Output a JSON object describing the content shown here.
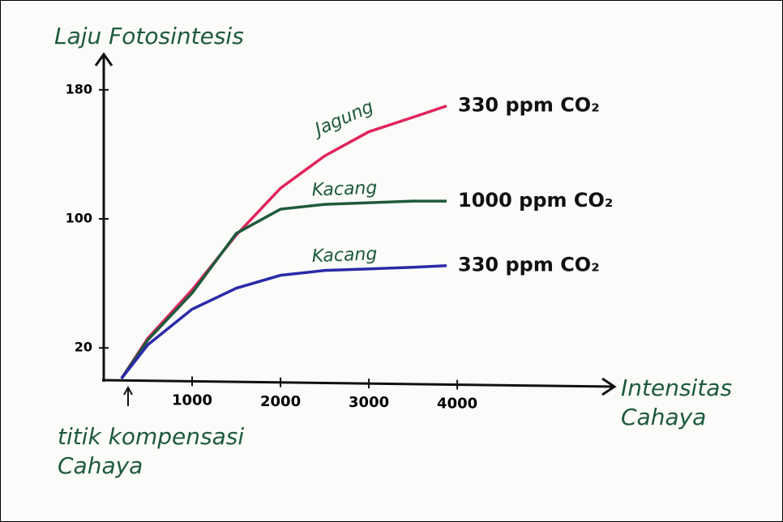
{
  "chart_data": {
    "type": "line",
    "y_label": "Laju Fotosintesis",
    "x_label": "Intensitas Cahaya",
    "annotation": "titik kompensasi Cahaya",
    "x": [
      200,
      500,
      1000,
      1500,
      2000,
      2500,
      3000,
      3500,
      3880
    ],
    "series": [
      {
        "name": "Jagung",
        "label": "330 ppm CO₂",
        "color": "#e0245e",
        "values": [
          1,
          26,
          56,
          90,
          119,
          139,
          154,
          163,
          170
        ]
      },
      {
        "name": "Kacang",
        "label": "1000 ppm CO₂",
        "color": "#1f5a3a",
        "values": [
          1,
          25,
          54,
          91,
          106,
          109,
          110,
          111,
          111
        ]
      },
      {
        "name": "Kacang",
        "label": "330 ppm CO₂",
        "color": "#2a2aa8",
        "values": [
          1,
          22,
          44,
          57,
          65,
          68,
          69,
          70,
          71
        ]
      }
    ],
    "xlim": [
      0,
      5760
    ],
    "ylim": [
      0,
      200
    ],
    "xticks": [
      1000,
      2000,
      3000,
      4000
    ],
    "yticks": [
      20,
      100,
      180
    ]
  }
}
